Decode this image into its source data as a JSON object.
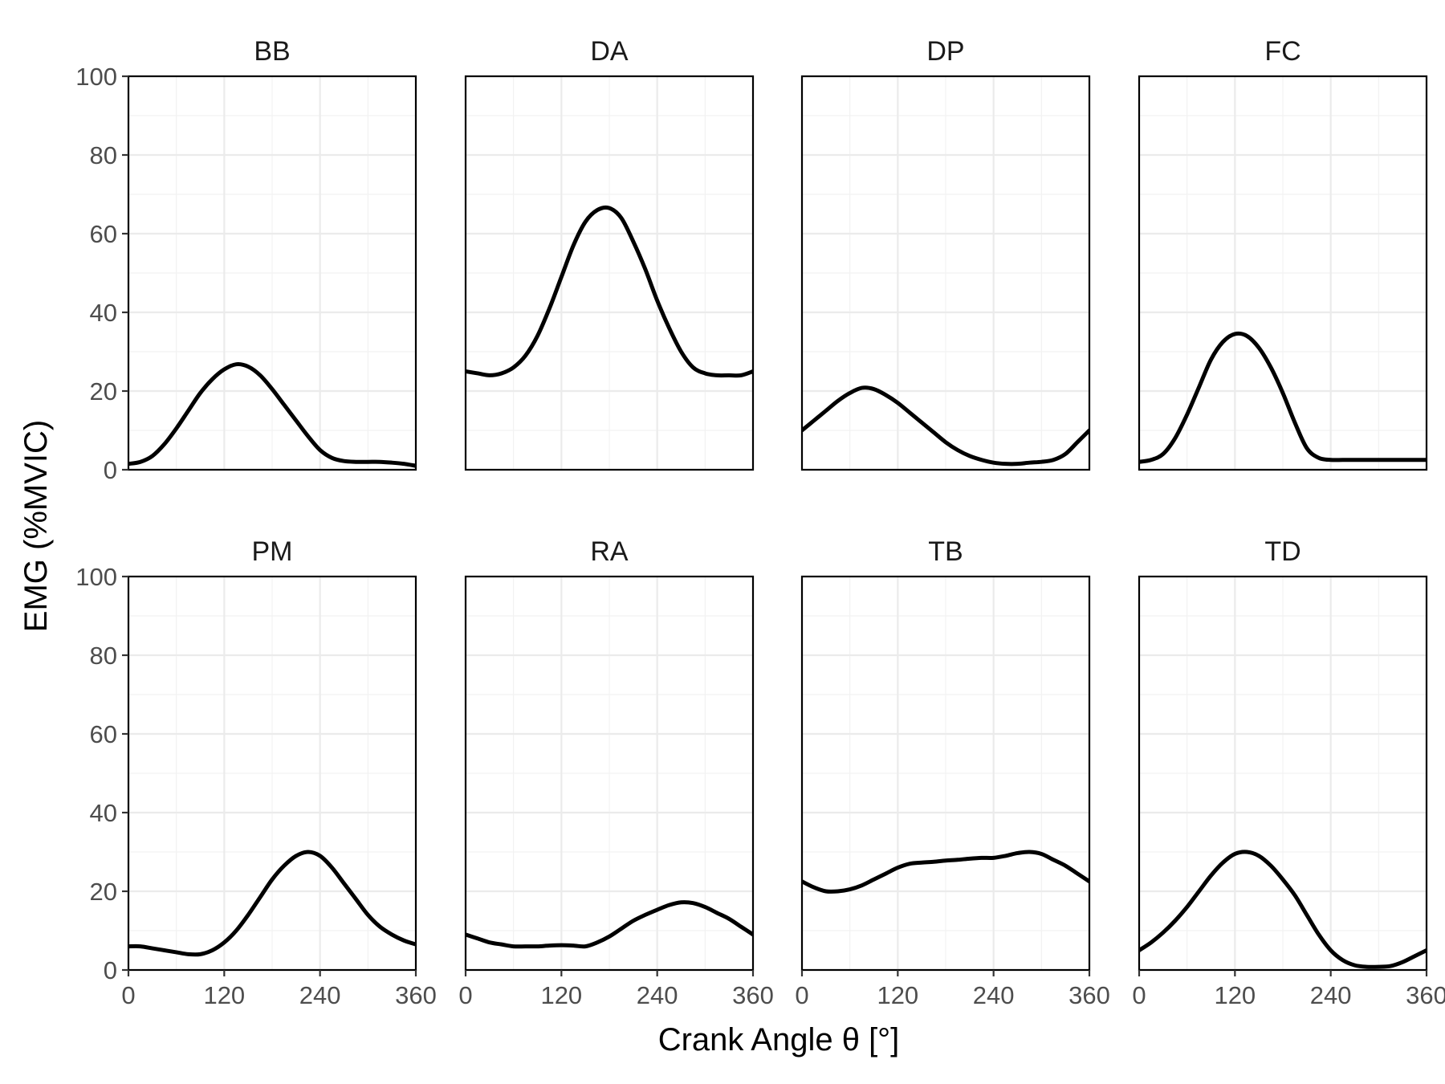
{
  "chart_data": {
    "type": "line",
    "facets": [
      "BB",
      "DA",
      "DP",
      "FC",
      "PM",
      "RA",
      "TB",
      "TD"
    ],
    "xlabel": "Crank Angle θ [°]",
    "ylabel": "EMG (%MVIC)",
    "xlim": [
      0,
      360
    ],
    "ylim": [
      0,
      100
    ],
    "x_ticks": [
      0,
      120,
      240,
      360
    ],
    "x_tick_labels": [
      "0",
      "120",
      "240",
      "360"
    ],
    "y_ticks": [
      0,
      20,
      40,
      60,
      80,
      100
    ],
    "y_tick_labels": [
      "0",
      "20",
      "40",
      "60",
      "80",
      "100"
    ],
    "grid": true,
    "line_color": "#000000",
    "x": [
      0,
      15,
      30,
      45,
      60,
      75,
      90,
      105,
      120,
      135,
      150,
      165,
      180,
      195,
      210,
      225,
      240,
      255,
      270,
      285,
      300,
      315,
      330,
      345,
      360
    ],
    "series": [
      {
        "name": "BB",
        "values": [
          1.5,
          2,
          3.5,
          6.5,
          10.5,
          15,
          19.5,
          23,
          25.5,
          26.8,
          26.2,
          24,
          20.5,
          16.5,
          12.5,
          8.5,
          5,
          3,
          2.2,
          2,
          2,
          2,
          1.8,
          1.5,
          1
        ]
      },
      {
        "name": "DA",
        "values": [
          25,
          24.5,
          24,
          24.5,
          26,
          29,
          34,
          41,
          49,
          57,
          63,
          66,
          66.5,
          64,
          58,
          51,
          43,
          36,
          30,
          26,
          24.5,
          24,
          24,
          24,
          25
        ]
      },
      {
        "name": "DP",
        "values": [
          10,
          12.5,
          15,
          17.5,
          19.5,
          20.8,
          20.5,
          19,
          17,
          14.5,
          12,
          9.5,
          7,
          5,
          3.5,
          2.5,
          1.8,
          1.5,
          1.5,
          1.8,
          2,
          2.5,
          4,
          7,
          10
        ]
      },
      {
        "name": "FC",
        "values": [
          2,
          2.5,
          4,
          8,
          14,
          21,
          28,
          32.5,
          34.5,
          34,
          31,
          26,
          19.5,
          12,
          5.5,
          3,
          2.5,
          2.5,
          2.5,
          2.5,
          2.5,
          2.5,
          2.5,
          2.5,
          2.5
        ]
      },
      {
        "name": "PM",
        "values": [
          6,
          6,
          5.5,
          5,
          4.5,
          4,
          4,
          5,
          7,
          10,
          14,
          18.5,
          23,
          26.5,
          29,
          30,
          29,
          26,
          22,
          18,
          14,
          11,
          9,
          7.5,
          6.5
        ]
      },
      {
        "name": "RA",
        "values": [
          9,
          8,
          7,
          6.5,
          6,
          6,
          6,
          6.2,
          6.3,
          6.2,
          6,
          7,
          8.5,
          10.5,
          12.5,
          14,
          15.3,
          16.5,
          17.2,
          17,
          16,
          14.5,
          13,
          11,
          9
        ]
      },
      {
        "name": "TB",
        "values": [
          22.5,
          21,
          20,
          20,
          20.5,
          21.5,
          23,
          24.5,
          26,
          27,
          27.3,
          27.5,
          27.8,
          28,
          28.3,
          28.5,
          28.5,
          29,
          29.7,
          30,
          29.5,
          28,
          26.5,
          24.5,
          22.5
        ]
      },
      {
        "name": "TD",
        "values": [
          5,
          7,
          9.5,
          12.5,
          16,
          20,
          24,
          27.3,
          29.5,
          30,
          29,
          26.5,
          23,
          19,
          14,
          9,
          5,
          2.5,
          1.2,
          0.8,
          0.8,
          1,
          2,
          3.5,
          5
        ]
      }
    ]
  }
}
